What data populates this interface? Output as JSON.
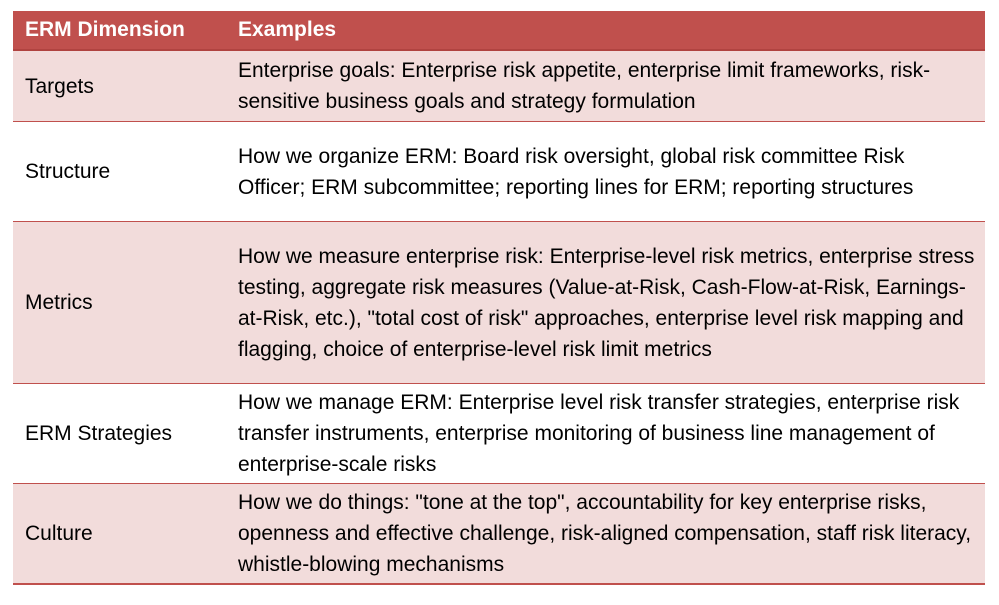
{
  "table": {
    "headers": {
      "dimension": "ERM Dimension",
      "examples": "Examples"
    },
    "rows": [
      {
        "dimension": "Targets",
        "examples": "Enterprise goals: Enterprise risk appetite, enterprise limit frameworks, risk-sensitive business goals and strategy formulation"
      },
      {
        "dimension": "Structure",
        "examples": "How we organize ERM: Board risk oversight, global risk committee Risk Officer; ERM subcommittee; reporting lines for ERM; reporting structures"
      },
      {
        "dimension": "Metrics",
        "examples": "How we measure enterprise risk: Enterprise-level risk metrics, enterprise stress testing, aggregate risk measures (Value-at-Risk, Cash-Flow-at-Risk, Earnings-at-Risk, etc.), \"total cost of risk\" approaches, enterprise level risk mapping and flagging, choice of enterprise-level risk limit metrics"
      },
      {
        "dimension": "ERM Strategies",
        "examples": "How we manage ERM: Enterprise level risk transfer strategies, enterprise risk transfer instruments, enterprise monitoring of business line management of enterprise-scale risks"
      },
      {
        "dimension": "Culture",
        "examples": "How we do things: \"tone at the top\", accountability for key enterprise risks, openness and effective challenge, risk-aligned compensation, staff risk literacy, whistle-blowing mechanisms"
      }
    ]
  },
  "colors": {
    "header_bg": "#c0504d",
    "band_bg": "#f2dcdb",
    "border": "#c0504d"
  }
}
